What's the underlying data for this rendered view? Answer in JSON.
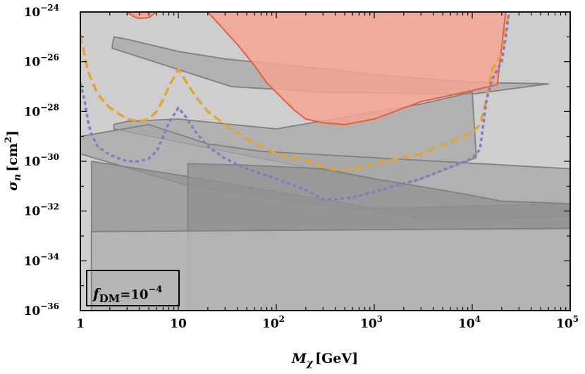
{
  "chart_data": {
    "type": "area",
    "xscale": "log",
    "yscale": "log",
    "xlim": [
      1,
      100000
    ],
    "ylim": [
      1e-36,
      1e-24
    ],
    "xlabel": "M_χ [GeV]",
    "ylabel": "σ_n [cm²]",
    "xticks": [
      {
        "base": "1",
        "exp": ""
      },
      {
        "base": "10",
        "exp": ""
      },
      {
        "base": "10",
        "exp": "2"
      },
      {
        "base": "10",
        "exp": "3"
      },
      {
        "base": "10",
        "exp": "4"
      },
      {
        "base": "10",
        "exp": "5"
      }
    ],
    "yticks": [
      {
        "base": "10",
        "exp": "−24"
      },
      {
        "base": "10",
        "exp": "−26"
      },
      {
        "base": "10",
        "exp": "−28"
      },
      {
        "base": "10",
        "exp": "−30"
      },
      {
        "base": "10",
        "exp": "−32"
      },
      {
        "base": "10",
        "exp": "−34"
      },
      {
        "base": "10",
        "exp": "−36"
      }
    ],
    "annotation": {
      "main": "f",
      "sub": "DM",
      "rest": "=10",
      "exp": "−4"
    },
    "colors": {
      "gray_light": "#bdbdbd",
      "gray_mid": "#a7a7a7",
      "gray_dark": "#919191",
      "gray_edge": "#808080",
      "red_fill": "#f4a694",
      "red_edge": "#e4603c",
      "orange_curve": "#e3a531",
      "purple_curve": "#8979c2"
    },
    "regions": [
      {
        "fill": "gray_light",
        "points": [
          [
            1,
            1e-24
          ],
          [
            100000.0,
            1e-24
          ],
          [
            100000.0,
            1e-36
          ],
          [
            1,
            1e-36
          ]
        ]
      },
      {
        "fill": "gray_mid",
        "points": [
          [
            2.1,
            3.5e-26
          ],
          [
            35,
            1e-27
          ],
          [
            300,
            6e-28
          ],
          [
            2000.0,
            5.5e-28
          ],
          [
            10000.0,
            5e-28
          ],
          [
            60000.0,
            1.3e-27
          ],
          [
            10000.0,
            1.5e-27
          ],
          [
            1000.0,
            3e-27
          ],
          [
            350,
            5e-27
          ],
          [
            100,
            8e-27
          ],
          [
            30,
            1.3e-26
          ],
          [
            10,
            2.6e-26
          ],
          [
            3,
            8e-26
          ],
          [
            2.2,
            1e-25
          ]
        ]
      },
      {
        "fill": "gray_mid",
        "points": [
          [
            2.2,
            2e-29
          ],
          [
            10,
            6e-30
          ],
          [
            100,
            1e-30
          ],
          [
            2000.0,
            1e-31
          ],
          [
            11000.0,
            1.4e-30
          ],
          [
            10000.0,
            6e-28
          ],
          [
            3000.0,
            2e-28
          ],
          [
            100,
            2e-29
          ],
          [
            10,
            5e-29
          ],
          [
            3,
            4e-29
          ],
          [
            2.2,
            3e-29
          ]
        ]
      },
      {
        "fill": "gray_mid",
        "points": [
          [
            1,
            1e-29
          ],
          [
            5,
            3e-29
          ],
          [
            20,
            5e-30
          ],
          [
            70,
            2.5e-30
          ],
          [
            100000.0,
            5e-31
          ],
          [
            100000.0,
            6e-33
          ],
          [
            10000.0,
            5e-33
          ],
          [
            3000.0,
            5e-33
          ],
          [
            1000.0,
            1e-32
          ],
          [
            100,
            3e-32
          ],
          [
            12,
            1.1e-31
          ],
          [
            1,
            2e-30
          ]
        ]
      },
      {
        "fill": "gray_dark",
        "points": [
          [
            1.3,
            1e-30
          ],
          [
            12,
            2.5e-31
          ],
          [
            100,
            6e-32
          ],
          [
            1000.0,
            1.3e-32
          ],
          [
            30000.0,
            1.7e-32
          ],
          [
            100000.0,
            2e-32
          ],
          [
            100000.0,
            1e-36
          ],
          [
            1.3,
            1e-36
          ]
        ]
      },
      {
        "fill": "gray_dark",
        "points": [
          [
            12.5,
            8e-31
          ],
          [
            50,
            7e-31
          ],
          [
            300,
            5e-31
          ],
          [
            1000.0,
            2e-31
          ],
          [
            8000.0,
            5e-32
          ],
          [
            20000.0,
            2.5e-32
          ],
          [
            100000.0,
            2e-32
          ],
          [
            100000.0,
            1e-36
          ],
          [
            12.5,
            1e-36
          ]
        ]
      },
      {
        "fill": "gray_light",
        "points": [
          [
            1.3,
            1e-36
          ],
          [
            1.3,
            1.5e-33
          ],
          [
            100000.0,
            2e-33
          ],
          [
            100000.0,
            1e-36
          ]
        ]
      },
      {
        "fill": "red_fill",
        "stroke": "red_edge",
        "points": [
          [
            3,
            1e-24
          ],
          [
            3.5,
            6.5e-25
          ],
          [
            4,
            5.5e-25
          ],
          [
            5,
            6e-25
          ],
          [
            6,
            1e-24
          ]
        ]
      },
      {
        "fill": "red_fill",
        "stroke": "red_edge",
        "points": [
          [
            20,
            1e-24
          ],
          [
            22000.0,
            1e-24
          ],
          [
            18000.0,
            1.2e-27
          ],
          [
            10000.0,
            7e-28
          ],
          [
            3000.0,
            2.5e-28
          ],
          [
            1000.0,
            5e-29
          ],
          [
            500,
            3e-29
          ],
          [
            300,
            3.5e-29
          ],
          [
            200,
            5e-29
          ],
          [
            150,
            1.2e-28
          ],
          [
            80,
            1.4e-27
          ],
          [
            60,
            7e-27
          ],
          [
            40,
            5e-26
          ]
        ]
      }
    ],
    "series": [
      {
        "color": "orange_curve",
        "dash": "dashed",
        "points": [
          [
            1,
            1.2e-25
          ],
          [
            1.2,
            4e-27
          ],
          [
            1.5,
            5e-28
          ],
          [
            2,
            1.4e-28
          ],
          [
            3,
            5e-29
          ],
          [
            4,
            4e-29
          ],
          [
            5,
            5e-29
          ],
          [
            6,
            1e-28
          ],
          [
            7,
            3e-28
          ],
          [
            8,
            1e-27
          ],
          [
            10,
            5e-27
          ],
          [
            12,
            1.6e-27
          ],
          [
            15,
            4e-28
          ],
          [
            20,
            1e-28
          ],
          [
            30,
            3e-29
          ],
          [
            50,
            8e-30
          ],
          [
            100,
            2e-30
          ],
          [
            200,
            1.1e-30
          ],
          [
            300,
            6e-31
          ],
          [
            400,
            4.5e-31
          ],
          [
            600,
            5e-31
          ],
          [
            1000.0,
            8e-31
          ],
          [
            3000.0,
            2e-30
          ],
          [
            10000.0,
            1.4e-29
          ],
          [
            12000.0,
            3e-29
          ],
          [
            14000.0,
            3e-28
          ],
          [
            16000.0,
            5e-27
          ],
          [
            20000.0,
            2e-26
          ],
          [
            22000.0,
            2e-25
          ],
          [
            24000.0,
            1.3e-24
          ]
        ]
      },
      {
        "color": "purple_curve",
        "dash": "dotted",
        "points": [
          [
            1,
            1.4e-27
          ],
          [
            1.1,
            3e-28
          ],
          [
            1.2,
            4e-29
          ],
          [
            1.3,
            1.2e-29
          ],
          [
            1.5,
            4e-30
          ],
          [
            2,
            1.8e-30
          ],
          [
            3,
            1e-30
          ],
          [
            4,
            1e-30
          ],
          [
            5,
            1.3e-30
          ],
          [
            6,
            2.5e-30
          ],
          [
            7,
            1e-29
          ],
          [
            8,
            3.5e-29
          ],
          [
            10,
            1.4e-28
          ],
          [
            12,
            6e-29
          ],
          [
            15,
            1.5e-29
          ],
          [
            20,
            4e-30
          ],
          [
            30,
            1.3e-30
          ],
          [
            50,
            5e-31
          ],
          [
            100,
            2e-31
          ],
          [
            200,
            7e-32
          ],
          [
            300,
            3e-32
          ],
          [
            400,
            3e-32
          ],
          [
            600,
            3.5e-32
          ],
          [
            1000.0,
            6e-32
          ],
          [
            3000.0,
            2e-31
          ],
          [
            10000.0,
            1.3e-30
          ],
          [
            12000.0,
            3e-30
          ],
          [
            14000.0,
            3e-28
          ],
          [
            16000.0,
            2e-27
          ],
          [
            20000.0,
            1e-26
          ],
          [
            22000.0,
            1e-25
          ],
          [
            24000.0,
            1.3e-24
          ]
        ]
      }
    ]
  }
}
